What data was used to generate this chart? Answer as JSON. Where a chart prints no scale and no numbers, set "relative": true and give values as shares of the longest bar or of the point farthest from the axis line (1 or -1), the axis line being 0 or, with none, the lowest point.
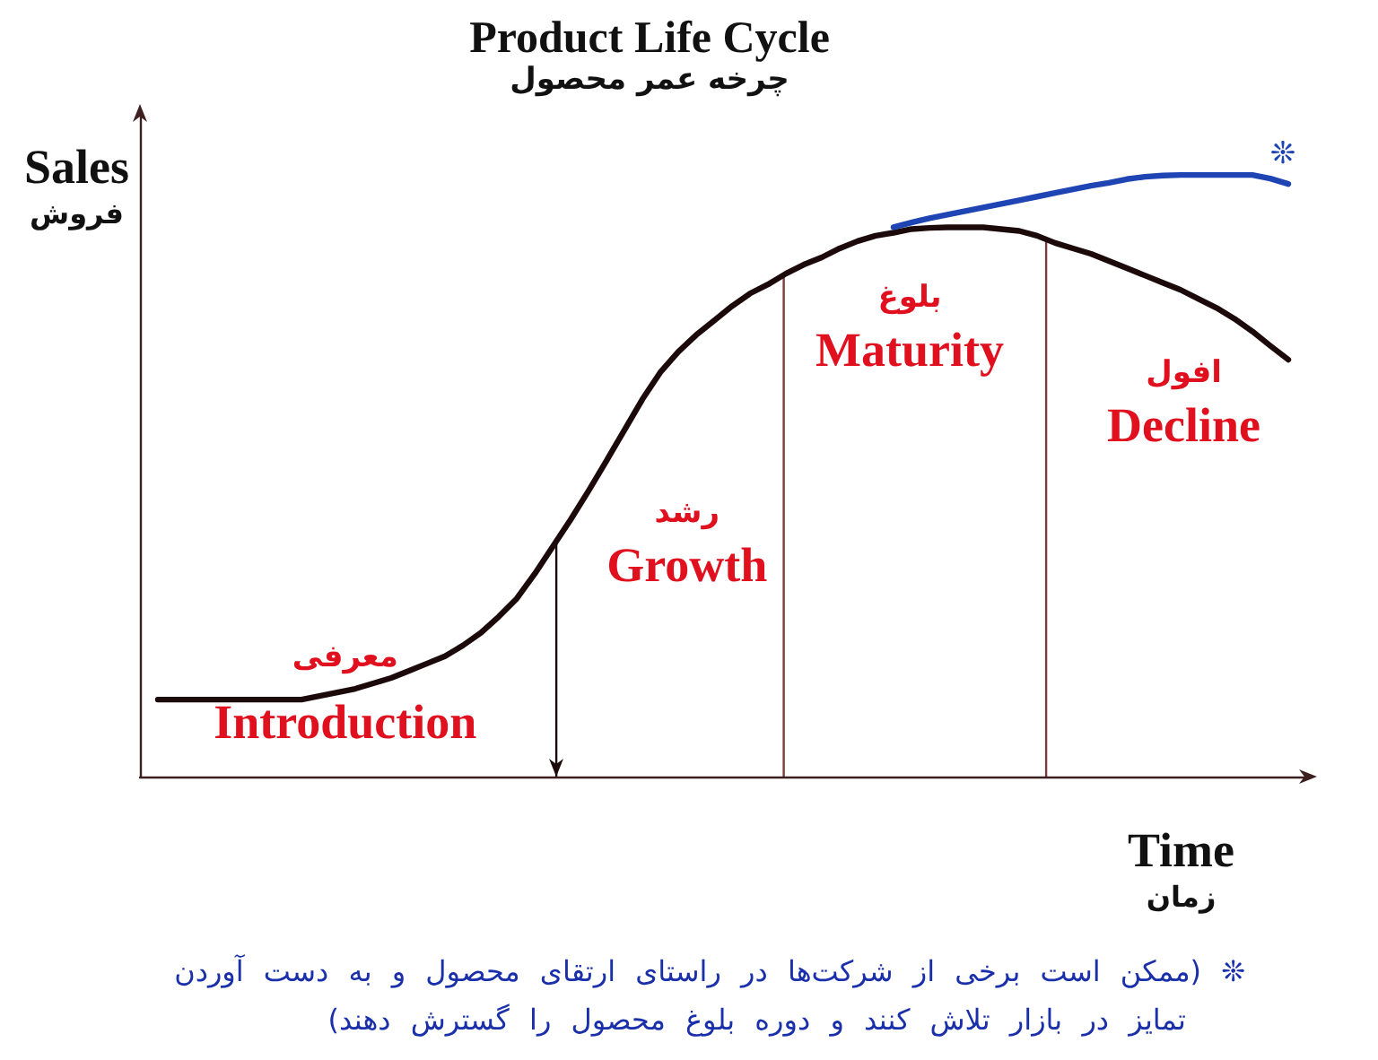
{
  "chart_data": {
    "type": "line",
    "title": "Product Life Cycle",
    "subtitle": "چرخه عمر محصول",
    "xlabel": "Time\nزمان",
    "ylabel": "Sales\nفروش",
    "relative": true,
    "categories": [
      null,
      null,
      null,
      null,
      null,
      null,
      null,
      null,
      null,
      null,
      null,
      null,
      null,
      null,
      null,
      null,
      null,
      null,
      null,
      null,
      null,
      null,
      null,
      null,
      null,
      null,
      null,
      null,
      null,
      null,
      null,
      null,
      null,
      null,
      null,
      null,
      null,
      null,
      null,
      null,
      null,
      null,
      null,
      null,
      null,
      null,
      null,
      null,
      null,
      null,
      null,
      null,
      null,
      null,
      null,
      null,
      null,
      null,
      null,
      null,
      null,
      null,
      null,
      null,
      null,
      null
    ],
    "series": [
      {
        "color": "#1c0a0a",
        "values": [
          null,
          0.128,
          0.128,
          0.128,
          0.128,
          0.128,
          0.128,
          0.128,
          0.128,
          0.128,
          0.134,
          0.14,
          0.146,
          0.155,
          0.164,
          0.176,
          0.188,
          0.2,
          0.218,
          0.239,
          0.266,
          0.296,
          0.337,
          0.382,
          0.427,
          0.475,
          0.525,
          0.576,
          0.627,
          0.672,
          0.706,
          0.734,
          0.758,
          0.782,
          0.803,
          0.818,
          0.836,
          0.851,
          0.863,
          0.878,
          0.89,
          0.899,
          0.904,
          0.91,
          0.912,
          0.913,
          0.913,
          0.913,
          0.91,
          0.907,
          0.899,
          0.887,
          0.878,
          0.869,
          0.857,
          0.845,
          0.833,
          0.821,
          0.809,
          0.794,
          0.779,
          0.761,
          0.74,
          0.716,
          0.693,
          null
        ]
      },
      {
        "name": "❊",
        "color": "#1f45b5",
        "values": [
          null,
          null,
          null,
          null,
          null,
          null,
          null,
          null,
          null,
          null,
          null,
          null,
          null,
          null,
          null,
          null,
          null,
          null,
          null,
          null,
          null,
          null,
          null,
          null,
          null,
          null,
          null,
          null,
          null,
          null,
          null,
          null,
          null,
          null,
          null,
          null,
          null,
          null,
          null,
          null,
          null,
          null,
          0.913,
          0.921,
          0.928,
          0.934,
          0.94,
          0.946,
          0.952,
          0.958,
          0.964,
          0.97,
          0.976,
          0.982,
          0.987,
          0.993,
          0.997,
          0.999,
          1,
          1,
          1,
          1,
          1,
          0.994,
          0.985,
          null
        ]
      }
    ],
    "annotations": [
      "معرفی\nIntroduction",
      "رشد\nGrowth",
      "بلوغ\nMaturity",
      "افول\nDecline",
      "❊ (ممکن است برخی از شرکت‌ها در راستای ارتقای محصول و به دست آوردن تمایز در بازار تلاش کنند و دوره بلوغ محصول را گسترش دهند)"
    ]
  }
}
